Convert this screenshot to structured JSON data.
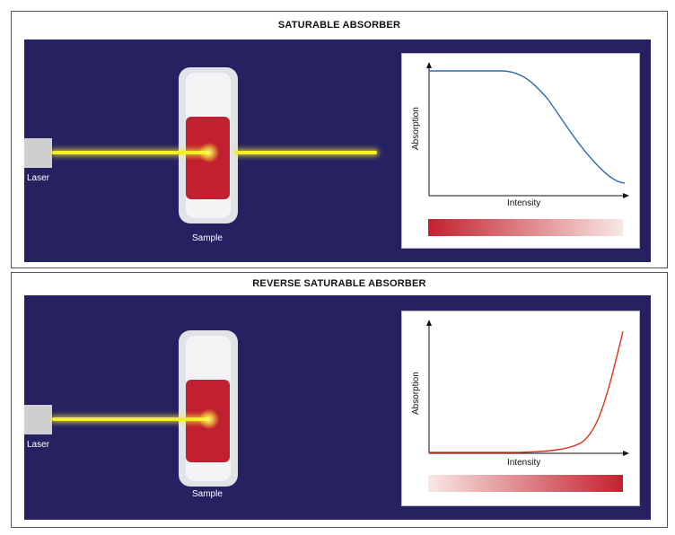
{
  "panels": [
    {
      "title": "SATURABLE ABSORBER",
      "laser_label": "Laser",
      "sample_label": "Sample",
      "graph": {
        "ylabel": "Absorption",
        "xlabel": "Intensity"
      },
      "gradient": {
        "from": "#c4202e",
        "to": "#f8e8e4"
      }
    },
    {
      "title": "REVERSE SATURABLE ABSORBER",
      "laser_label": "Laser",
      "sample_label": "Sample",
      "graph": {
        "ylabel": "Absorption",
        "xlabel": "Intensity"
      },
      "gradient": {
        "from": "#f8e8e4",
        "to": "#c4202e"
      }
    }
  ],
  "colors": {
    "background": "#262262",
    "beam": "#f5ef2a",
    "sample_liquid": "#c0202f",
    "saturable_curve": "#2f6db5",
    "reverse_curve": "#e0321c"
  }
}
